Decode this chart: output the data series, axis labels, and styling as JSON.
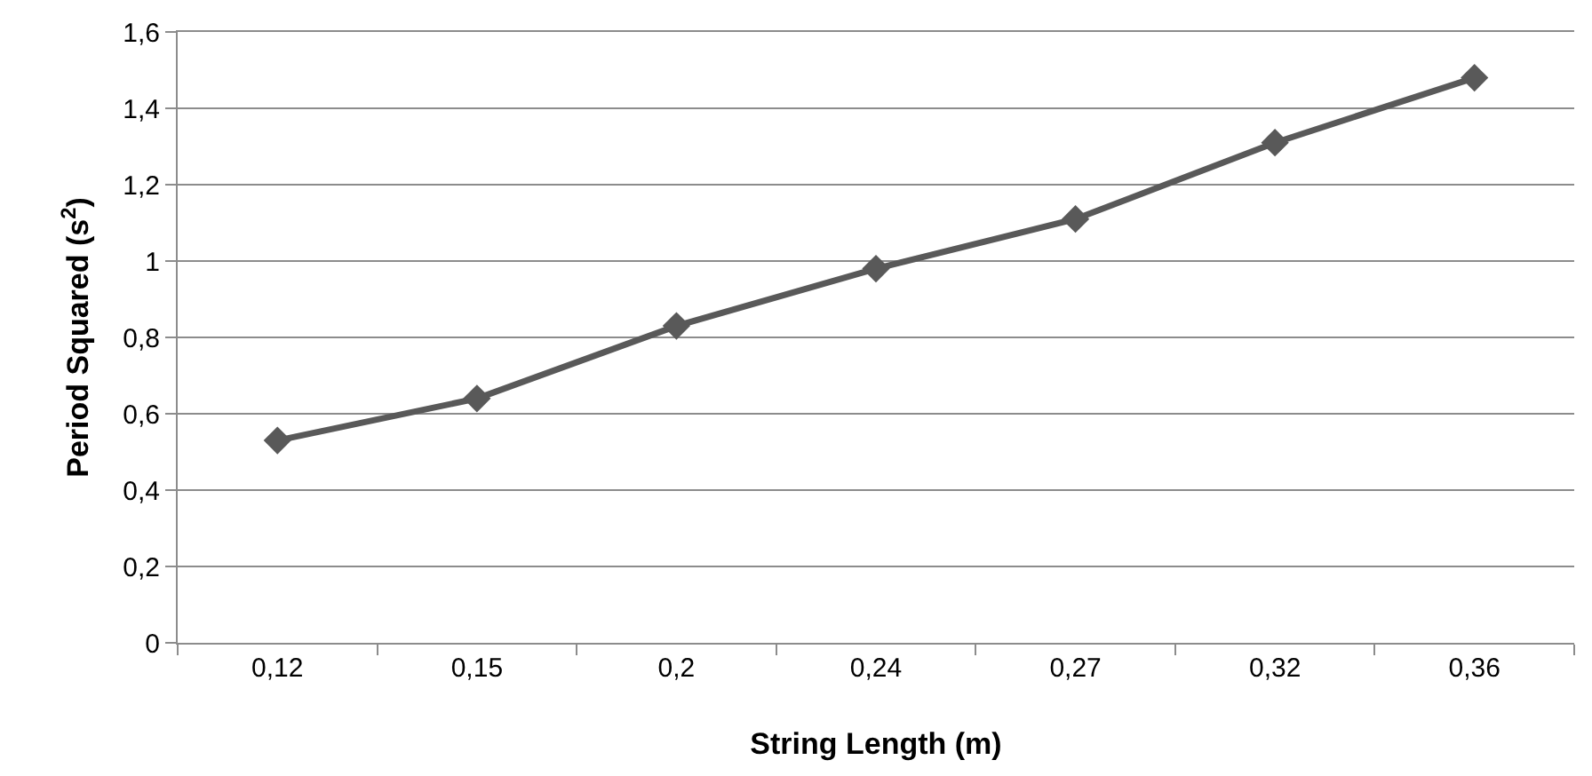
{
  "chart_data": {
    "type": "line",
    "xlabel": "String Length (m)",
    "ylabel": "Period Squared (s$^{2}$)",
    "categories": [
      "0,12",
      "0,15",
      "0,2",
      "0,24",
      "0,27",
      "0,32",
      "0,36"
    ],
    "series": [
      {
        "color": "#595959",
        "values": [
          0.53,
          0.64,
          0.83,
          0.98,
          1.11,
          1.31,
          1.48
        ]
      }
    ],
    "ylim": [
      0,
      1.6
    ],
    "yticks": [
      0,
      {
        "value": 0.2,
        "label": "0,2"
      },
      {
        "value": 0.4,
        "label": "0,4"
      },
      {
        "value": 0.6,
        "label": "0,6"
      },
      {
        "value": 0.8,
        "label": "0,8"
      },
      1,
      {
        "value": 1.2,
        "label": "1,2"
      },
      {
        "value": 1.4,
        "label": "1,4"
      },
      {
        "value": 1.6,
        "label": "1,6"
      }
    ],
    "grid": "y",
    "marker": "diamond",
    "line_style": "solid"
  }
}
